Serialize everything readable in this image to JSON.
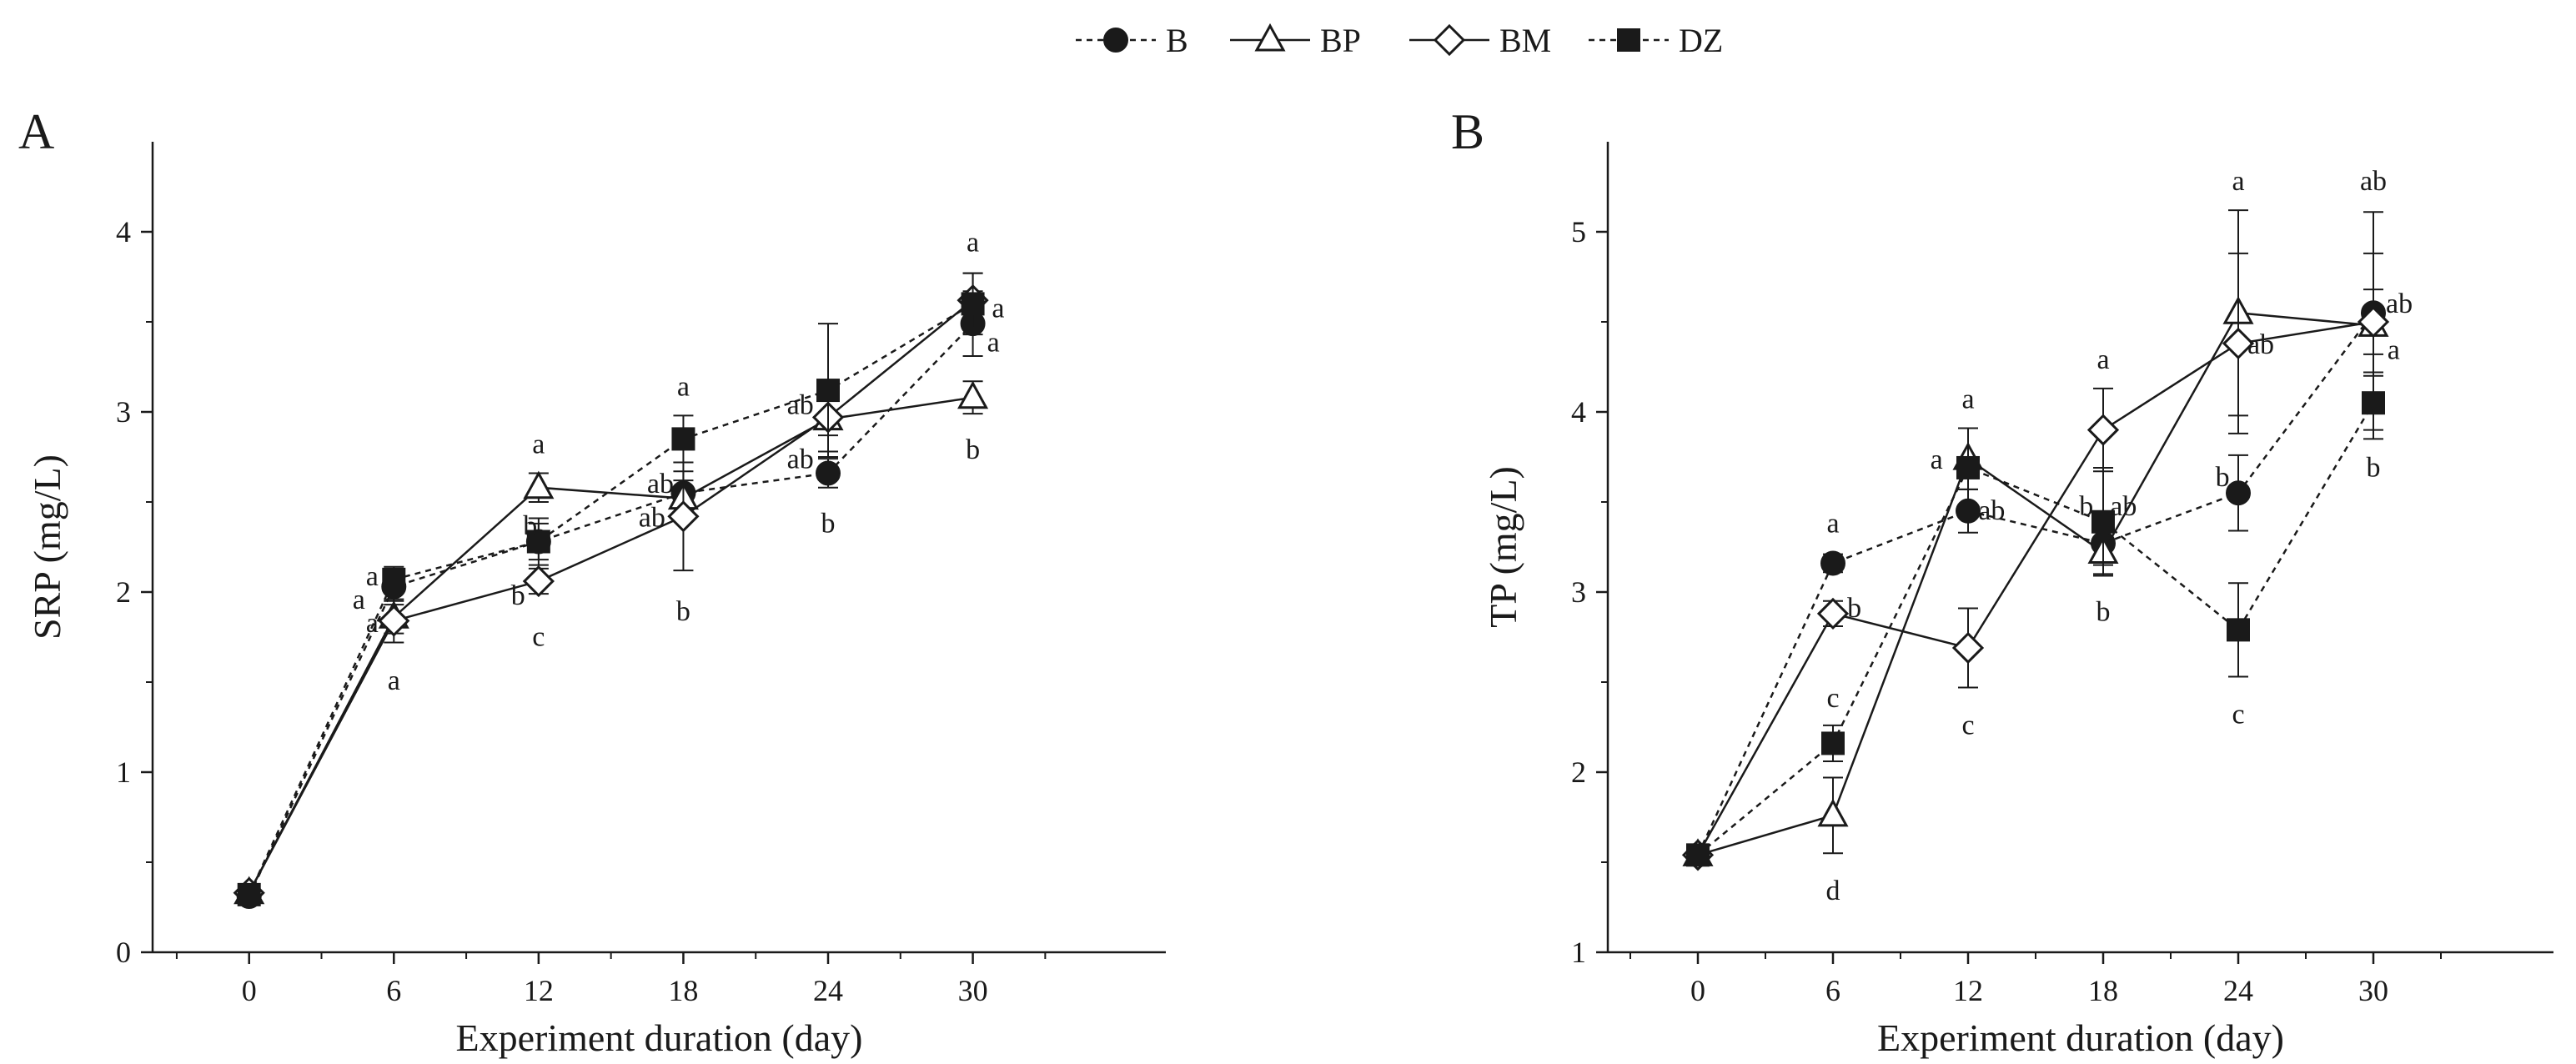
{
  "legend": [
    {
      "name": "B",
      "marker": "circle-filled",
      "dash": true
    },
    {
      "name": "BP",
      "marker": "triangle-open",
      "dash": false
    },
    {
      "name": "BM",
      "marker": "diamond-open",
      "dash": false
    },
    {
      "name": "DZ",
      "marker": "square-filled",
      "dash": true
    }
  ],
  "colors": {
    "ink": "#1a1a1a",
    "background": "#ffffff"
  },
  "chart_data": [
    {
      "type": "line",
      "panel": "A",
      "xlabel": "Experiment duration (day)",
      "ylabel": "SRP (mg/L)",
      "x": [
        0,
        6,
        12,
        18,
        24,
        30
      ],
      "xticks": [
        "0",
        "6",
        "12",
        "18",
        "24",
        "30"
      ],
      "xlim": [
        -4,
        38
      ],
      "ylim": [
        0,
        4.5
      ],
      "yticks": [
        0,
        1,
        2,
        3,
        4
      ],
      "series": [
        {
          "name": "B",
          "values": [
            0.31,
            2.03,
            2.28,
            2.55,
            2.66,
            3.49
          ],
          "errors": [
            0.02,
            0.1,
            0.13,
            0.12,
            0.08,
            0.18
          ]
        },
        {
          "name": "BP",
          "values": [
            0.33,
            1.86,
            2.58,
            2.52,
            2.96,
            3.08
          ],
          "errors": [
            0.02,
            0.09,
            0.08,
            0.1,
            0.18,
            0.09
          ]
        },
        {
          "name": "BM",
          "values": [
            0.33,
            1.84,
            2.06,
            2.42,
            2.97,
            3.62
          ],
          "errors": [
            0.02,
            0.12,
            0.07,
            0.3,
            0.1,
            0.15
          ]
        },
        {
          "name": "DZ",
          "values": [
            0.32,
            2.07,
            2.28,
            2.85,
            3.12,
            3.6
          ],
          "errors": [
            0.02,
            0.07,
            0.1,
            0.13,
            0.37,
            0.17
          ]
        }
      ],
      "annotations": [
        {
          "x": 6,
          "y": 2.13,
          "text": "a",
          "dx": -0.9,
          "dy": 20
        },
        {
          "x": 6,
          "y": 2.0,
          "text": "a",
          "dx": -1.45,
          "dy": 20
        },
        {
          "x": 6,
          "y": 1.87,
          "text": "a",
          "dx": -0.9,
          "dy": 20
        },
        {
          "x": 6,
          "y": 1.7,
          "text": "a",
          "dx": 0,
          "dy": 52
        },
        {
          "x": 12,
          "y": 2.66,
          "text": "a",
          "dx": 0,
          "dy": -24
        },
        {
          "x": 12,
          "y": 2.28,
          "text": "b",
          "dx": -0.35,
          "dy": -8
        },
        {
          "x": 12,
          "y": 2.06,
          "text": "b",
          "dx": -0.85,
          "dy": 28
        },
        {
          "x": 12,
          "y": 1.98,
          "text": "c",
          "dx": 0,
          "dy": 60
        },
        {
          "x": 18,
          "y": 2.98,
          "text": "a",
          "dx": 0,
          "dy": -24
        },
        {
          "x": 18,
          "y": 2.55,
          "text": "ab",
          "dx": -0.95,
          "dy": 0
        },
        {
          "x": 18,
          "y": 2.42,
          "text": "ab",
          "dx": -1.3,
          "dy": 12
        },
        {
          "x": 18,
          "y": 2.12,
          "text": "b",
          "dx": 0,
          "dy": 60
        },
        {
          "x": 24,
          "y": 2.97,
          "text": "ab",
          "dx": -1.15,
          "dy": -4
        },
        {
          "x": 24,
          "y": 2.78,
          "text": "ab",
          "dx": -1.15,
          "dy": 20
        },
        {
          "x": 24,
          "y": 2.58,
          "text": "b",
          "dx": 0,
          "dy": 54
        },
        {
          "x": 30,
          "y": 3.78,
          "text": "a",
          "dx": 0,
          "dy": -24
        },
        {
          "x": 30,
          "y": 3.58,
          "text": "a",
          "dx": 1.05,
          "dy": 12
        },
        {
          "x": 30,
          "y": 3.42,
          "text": "a",
          "dx": 0.85,
          "dy": 18
        },
        {
          "x": 30,
          "y": 3.0,
          "text": "b",
          "dx": 0,
          "dy": 56
        }
      ]
    },
    {
      "type": "line",
      "panel": "B",
      "xlabel": "Experiment duration (day)",
      "ylabel": "TP (mg/L)",
      "x": [
        0,
        6,
        12,
        18,
        24,
        30
      ],
      "xticks": [
        "0",
        "6",
        "12",
        "18",
        "24",
        "30"
      ],
      "xlim": [
        -4,
        38
      ],
      "ylim": [
        1,
        5.5
      ],
      "yticks": [
        1,
        2,
        3,
        4,
        5
      ],
      "series": [
        {
          "name": "B",
          "values": [
            1.54,
            3.16,
            3.45,
            3.27,
            3.55,
            4.55
          ],
          "errors": [
            0.02,
            0.05,
            0.12,
            0.12,
            0.21,
            0.33
          ]
        },
        {
          "name": "BP",
          "values": [
            1.54,
            1.76,
            3.74,
            3.22,
            4.55,
            4.48
          ],
          "errors": [
            0.02,
            0.21,
            0.17,
            0.12,
            0.57,
            0.63
          ]
        },
        {
          "name": "BM",
          "values": [
            1.54,
            2.88,
            2.69,
            3.9,
            4.38,
            4.5
          ],
          "errors": [
            0.02,
            0.07,
            0.22,
            0.23,
            0.5,
            0.18
          ]
        },
        {
          "name": "DZ",
          "values": [
            1.54,
            2.16,
            3.69,
            3.39,
            2.79,
            4.05
          ],
          "errors": [
            0.02,
            0.1,
            0.22,
            0.3,
            0.26,
            0.15
          ]
        }
      ],
      "annotations": [
        {
          "x": 6,
          "y": 3.22,
          "text": "a",
          "dx": 0,
          "dy": -24
        },
        {
          "x": 6,
          "y": 2.88,
          "text": "b",
          "dx": 0.95,
          "dy": 4
        },
        {
          "x": 6,
          "y": 2.36,
          "text": "c",
          "dx": 0,
          "dy": 0
        },
        {
          "x": 6,
          "y": 1.55,
          "text": "d",
          "dx": 0,
          "dy": 56
        },
        {
          "x": 12,
          "y": 3.91,
          "text": "a",
          "dx": 0,
          "dy": -24
        },
        {
          "x": 12,
          "y": 3.74,
          "text": "a",
          "dx": -1.4,
          "dy": 12
        },
        {
          "x": 12,
          "y": 3.45,
          "text": "ab",
          "dx": 1.05,
          "dy": 10
        },
        {
          "x": 12,
          "y": 2.47,
          "text": "c",
          "dx": 0,
          "dy": 56
        },
        {
          "x": 18,
          "y": 4.13,
          "text": "a",
          "dx": 0,
          "dy": -24
        },
        {
          "x": 18,
          "y": 3.39,
          "text": "b",
          "dx": -0.75,
          "dy": -8
        },
        {
          "x": 18,
          "y": 3.39,
          "text": "ab",
          "dx": 0.9,
          "dy": -8
        },
        {
          "x": 18,
          "y": 3.1,
          "text": "b",
          "dx": 0,
          "dy": 56
        },
        {
          "x": 24,
          "y": 5.12,
          "text": "a",
          "dx": 0,
          "dy": -24
        },
        {
          "x": 24,
          "y": 4.38,
          "text": "ab",
          "dx": 1.0,
          "dy": 12
        },
        {
          "x": 24,
          "y": 3.55,
          "text": "b",
          "dx": -0.7,
          "dy": -8
        },
        {
          "x": 24,
          "y": 2.53,
          "text": "c",
          "dx": 0,
          "dy": 56
        },
        {
          "x": 30,
          "y": 5.12,
          "text": "ab",
          "dx": 0,
          "dy": -24
        },
        {
          "x": 30,
          "y": 4.55,
          "text": "ab",
          "dx": 1.15,
          "dy": 0
        },
        {
          "x": 30,
          "y": 4.48,
          "text": "a",
          "dx": 0.9,
          "dy": 40
        },
        {
          "x": 30,
          "y": 3.9,
          "text": "b",
          "dx": 0,
          "dy": 56
        }
      ]
    }
  ]
}
